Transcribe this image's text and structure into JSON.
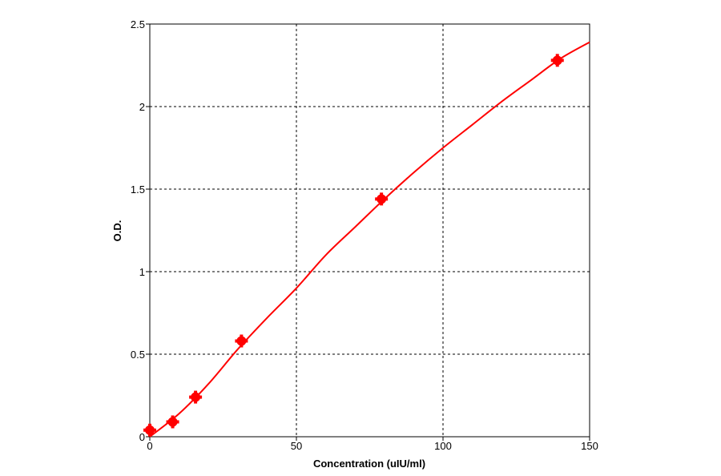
{
  "chart_data": {
    "type": "scatter",
    "title": "",
    "xlabel": "Concentration (uIU/ml)",
    "ylabel": "O.D.",
    "xlim": [
      0,
      150
    ],
    "ylim": [
      0,
      2.5
    ],
    "x_ticks": [
      "0",
      "50",
      "100",
      "150"
    ],
    "y_ticks": [
      "0",
      "0.5",
      "1",
      "1.5",
      "2",
      "2.5"
    ],
    "grid": true,
    "legend": "none",
    "series": [
      {
        "x": [
          0,
          7.8,
          15.6,
          31.25,
          79,
          139
        ],
        "y": [
          0.04,
          0.09,
          0.24,
          0.58,
          1.44,
          2.28
        ],
        "color": "#ff0000",
        "marker": "circle"
      }
    ],
    "fit_curve": {
      "color": "#ff0000",
      "x": [
        0,
        10,
        20,
        30,
        40,
        50,
        60,
        70,
        80,
        90,
        100,
        110,
        120,
        130,
        140,
        150
      ],
      "y": [
        0.0,
        0.14,
        0.32,
        0.53,
        0.72,
        0.9,
        1.1,
        1.27,
        1.44,
        1.6,
        1.75,
        1.89,
        2.03,
        2.16,
        2.29,
        2.39
      ]
    }
  }
}
